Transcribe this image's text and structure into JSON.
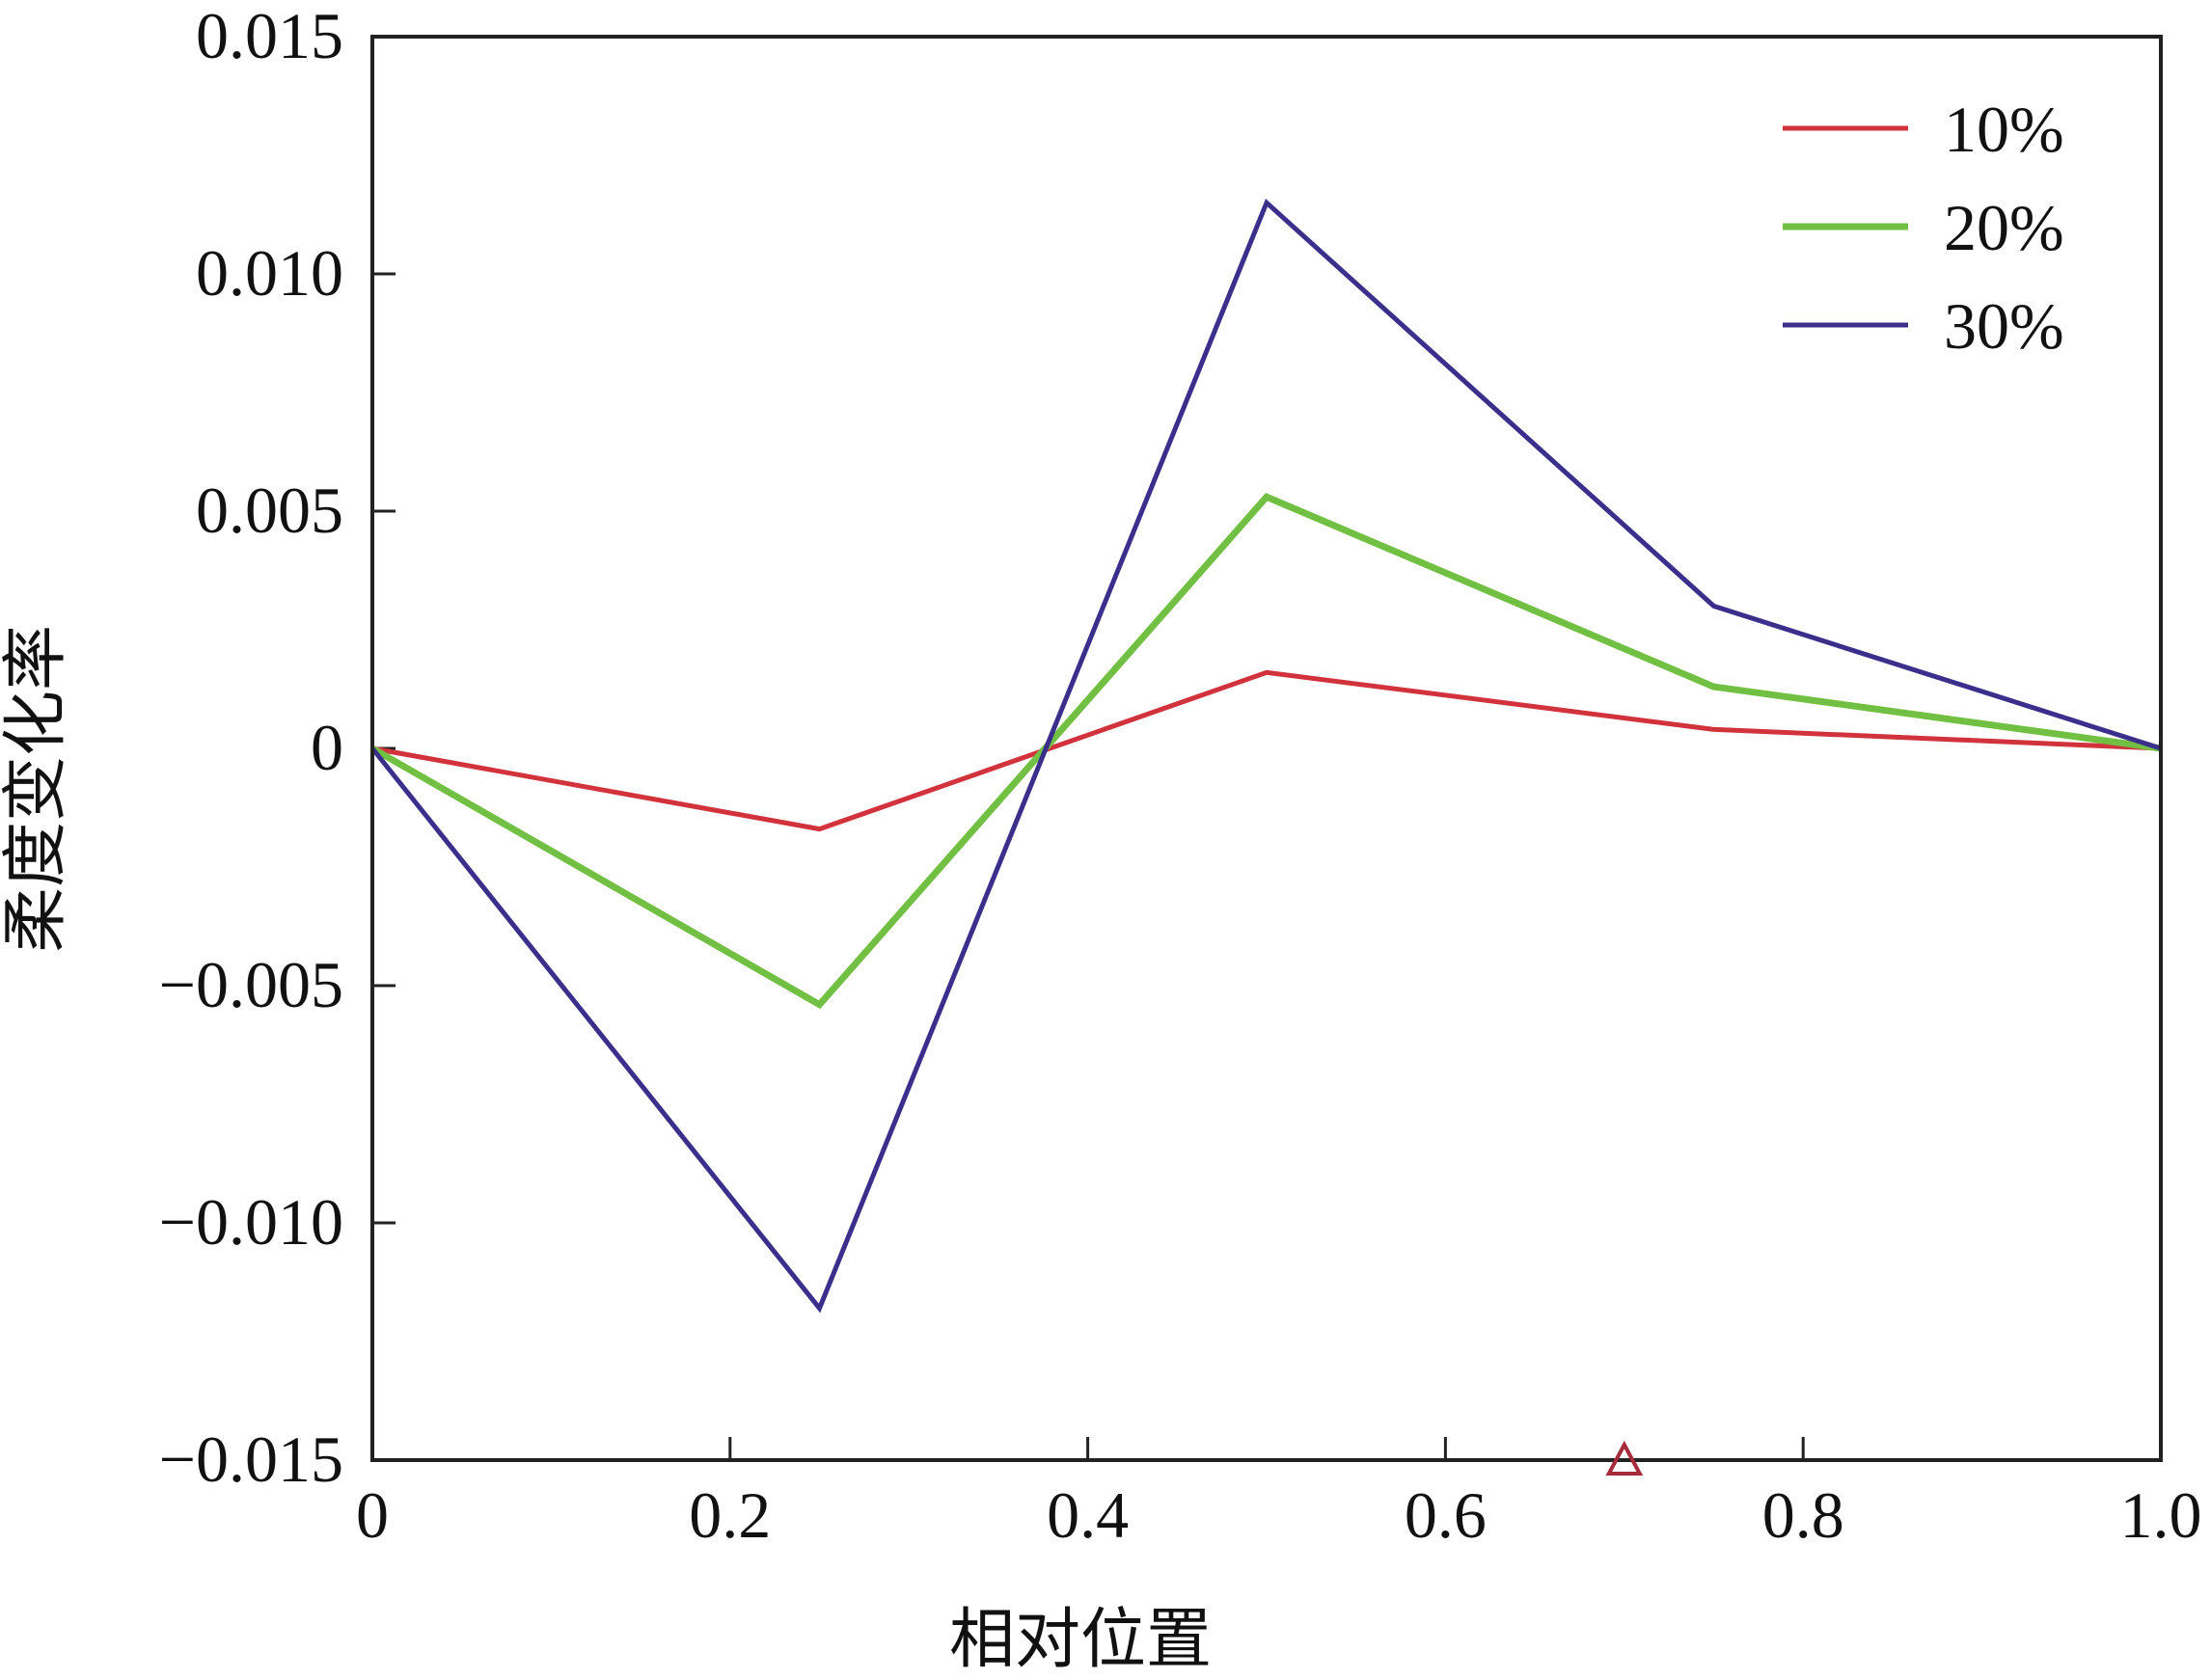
{
  "chart_data": {
    "type": "line",
    "xlabel": "相对位置",
    "ylabel": "柔度变化率",
    "xlim": [
      0,
      1.0
    ],
    "ylim": [
      -0.015,
      0.015
    ],
    "x_ticks": [
      0,
      0.2,
      0.4,
      0.6,
      0.8,
      1.0
    ],
    "x_tick_labels": [
      "0",
      "0.2",
      "0.4",
      "0.6",
      "0.8",
      "1.0"
    ],
    "y_ticks": [
      0.015,
      0.01,
      0.005,
      0,
      -0.005,
      -0.01,
      -0.015
    ],
    "y_tick_labels": [
      "0.015",
      "0.010",
      "0.005",
      "0",
      "−0.005",
      "−0.010",
      "−0.015"
    ],
    "grid": false,
    "legend_position": "top-right",
    "x": [
      0,
      0.25,
      0.5,
      0.75,
      1.0
    ],
    "series": [
      {
        "name": "10%",
        "color": "#d2323c",
        "values": [
          0,
          -0.0017,
          0.0016,
          0.0004,
          0
        ]
      },
      {
        "name": "20%",
        "color": "#72c043",
        "values": [
          0,
          -0.0054,
          0.0053,
          0.0013,
          0
        ]
      },
      {
        "name": "30%",
        "color": "#3b2f8c",
        "values": [
          0,
          -0.0118,
          0.0115,
          0.003,
          0
        ]
      }
    ],
    "marker_annotation": {
      "shape": "triangle",
      "color": "#a52a3a",
      "x": 0.7,
      "y": -0.015
    }
  }
}
